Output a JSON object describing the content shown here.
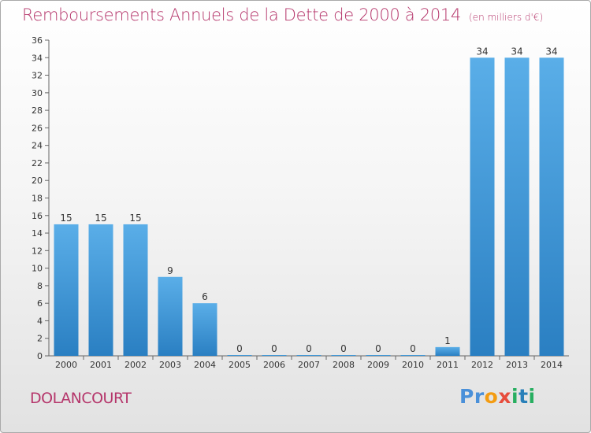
{
  "chart_data": {
    "type": "bar",
    "title": "Remboursements Annuels de la Dette de 2000 à 2014",
    "unit": "(en milliers d'€)",
    "categories": [
      "2000",
      "2001",
      "2002",
      "2003",
      "2004",
      "2005",
      "2006",
      "2007",
      "2008",
      "2009",
      "2010",
      "2011",
      "2012",
      "2013",
      "2014"
    ],
    "values": [
      15,
      15,
      15,
      9,
      6,
      0,
      0,
      0,
      0,
      0,
      0,
      1,
      34,
      34,
      34
    ],
    "ylim": [
      0,
      36
    ],
    "yticks": [
      0,
      2,
      4,
      6,
      8,
      10,
      12,
      14,
      16,
      18,
      20,
      22,
      24,
      26,
      28,
      30,
      32,
      34,
      36
    ],
    "grid": false,
    "bar_color": "#3d94d6",
    "title_color": "#b5366b"
  },
  "footer": {
    "commune": "DOLANCOURT",
    "logo": [
      "P",
      "r",
      "o",
      "x",
      "i",
      "t",
      "i"
    ]
  }
}
